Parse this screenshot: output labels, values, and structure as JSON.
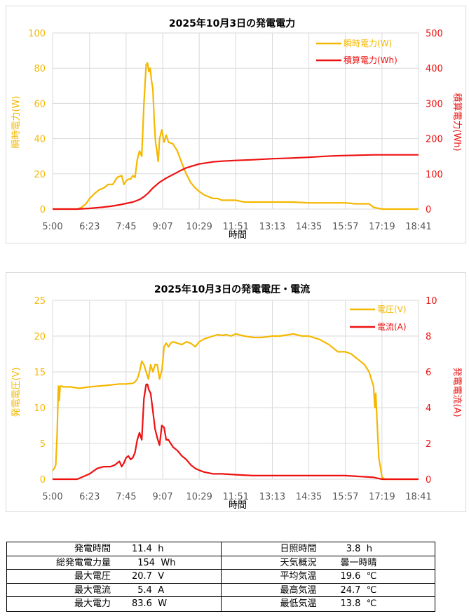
{
  "colors": {
    "instant": "#f5b800",
    "cumulative": "#ee1111",
    "voltage": "#f5b800",
    "current": "#ee1111",
    "grid": "#d9d9d9",
    "text": "#000000",
    "tick": "#595959"
  },
  "chart_data": [
    {
      "type": "line",
      "title": "2025年10月3日の発電電力",
      "xlabel": "時間",
      "ylabel": "瞬時電力(W)",
      "y2label": "積算電力(Wh)",
      "x_ticks": [
        "5:00",
        "6:23",
        "7:45",
        "9:07",
        "10:29",
        "11:51",
        "13:13",
        "14:35",
        "15:57",
        "17:19",
        "18:41"
      ],
      "ylim": [
        0,
        100
      ],
      "y_ticks": [
        "0",
        "20",
        "40",
        "60",
        "80",
        "100"
      ],
      "y2lim": [
        0,
        500
      ],
      "y2_ticks": [
        "0",
        "100",
        "200",
        "300",
        "400",
        "500"
      ],
      "grid": true,
      "legend_position": "top-right",
      "series": [
        {
          "name": "瞬時電力(W)",
          "axis": "left",
          "x": [
            "5:00",
            "5:55",
            "6:05",
            "6:15",
            "6:23",
            "6:35",
            "6:45",
            "6:55",
            "7:05",
            "7:15",
            "7:25",
            "7:35",
            "7:40",
            "7:45",
            "7:50",
            "7:55",
            "8:00",
            "8:05",
            "8:10",
            "8:15",
            "8:20",
            "8:25",
            "8:30",
            "8:33",
            "8:36",
            "8:39",
            "8:42",
            "8:45",
            "8:48",
            "8:51",
            "8:54",
            "8:57",
            "9:00",
            "9:05",
            "9:10",
            "9:15",
            "9:20",
            "9:30",
            "9:40",
            "9:50",
            "10:00",
            "10:10",
            "10:20",
            "10:29",
            "10:40",
            "10:50",
            "11:00",
            "11:10",
            "11:20",
            "11:30",
            "11:40",
            "11:51",
            "12:10",
            "12:30",
            "13:00",
            "13:13",
            "13:40",
            "14:00",
            "14:35",
            "15:00",
            "15:30",
            "15:57",
            "16:20",
            "16:40",
            "16:50",
            "17:00",
            "17:19",
            "18:00",
            "18:41"
          ],
          "y": [
            0,
            0,
            1,
            3,
            6,
            9,
            11,
            12,
            14,
            14,
            18,
            19,
            14,
            16,
            17,
            17,
            19,
            18,
            28,
            33,
            30,
            60,
            82,
            83,
            78,
            80,
            73,
            68,
            50,
            38,
            33,
            27,
            40,
            45,
            38,
            42,
            38,
            37,
            33,
            26,
            20,
            15,
            12,
            10,
            8,
            7,
            6,
            6,
            5,
            5,
            5,
            5,
            4,
            4,
            4,
            4,
            4,
            4,
            3.5,
            3.5,
            3.5,
            3.5,
            3,
            3,
            3,
            1,
            0,
            0,
            0
          ]
        },
        {
          "name": "積算電力(Wh)",
          "axis": "right",
          "x": [
            "5:00",
            "5:55",
            "6:23",
            "6:50",
            "7:10",
            "7:30",
            "7:45",
            "8:00",
            "8:15",
            "8:25",
            "8:35",
            "8:45",
            "9:00",
            "9:15",
            "9:30",
            "9:45",
            "10:00",
            "10:15",
            "10:29",
            "10:45",
            "11:00",
            "11:20",
            "11:51",
            "12:30",
            "13:13",
            "13:40",
            "14:00",
            "14:35",
            "15:00",
            "15:30",
            "15:57",
            "16:30",
            "17:00",
            "17:19",
            "18:00",
            "18:41"
          ],
          "y": [
            0,
            0,
            2,
            5,
            8,
            12,
            16,
            20,
            27,
            35,
            46,
            60,
            76,
            88,
            98,
            108,
            117,
            123,
            128,
            131,
            134,
            136,
            138,
            140,
            143,
            144,
            145,
            147,
            149,
            151,
            152,
            153,
            154,
            154,
            154,
            154
          ]
        }
      ]
    },
    {
      "type": "line",
      "title": "2025年10月3日の発電電圧・電流",
      "xlabel": "時間",
      "ylabel": "発電電圧(V)",
      "y2label": "発電電流(A)",
      "x_ticks": [
        "5:00",
        "6:23",
        "7:45",
        "9:07",
        "10:29",
        "11:51",
        "13:13",
        "14:35",
        "15:57",
        "17:19",
        "18:41"
      ],
      "ylim": [
        0,
        25
      ],
      "y_ticks": [
        "0",
        "5",
        "10",
        "15",
        "20",
        "25"
      ],
      "y2lim": [
        0,
        10
      ],
      "y2_ticks": [
        "0",
        "2",
        "4",
        "6",
        "8",
        "10"
      ],
      "grid": true,
      "legend_position": "top-right",
      "series": [
        {
          "name": "電圧(V)",
          "axis": "left",
          "x": [
            "5:00",
            "5:04",
            "5:07",
            "5:10",
            "5:13",
            "5:15",
            "5:17",
            "5:19",
            "5:21",
            "5:24",
            "5:40",
            "6:00",
            "6:23",
            "7:00",
            "7:30",
            "7:45",
            "8:00",
            "8:05",
            "8:10",
            "8:15",
            "8:20",
            "8:25",
            "8:30",
            "8:35",
            "8:40",
            "8:45",
            "8:50",
            "8:55",
            "9:00",
            "9:05",
            "9:07",
            "9:10",
            "9:15",
            "9:20",
            "9:25",
            "9:30",
            "9:40",
            "9:50",
            "10:00",
            "10:10",
            "10:20",
            "10:29",
            "10:40",
            "10:50",
            "11:00",
            "11:10",
            "11:20",
            "11:30",
            "11:40",
            "11:51",
            "12:10",
            "12:30",
            "12:50",
            "13:13",
            "13:30",
            "13:50",
            "14:00",
            "14:20",
            "14:35",
            "15:00",
            "15:20",
            "15:40",
            "15:57",
            "16:10",
            "16:20",
            "16:30",
            "16:40",
            "16:50",
            "16:55",
            "17:00",
            "17:03",
            "17:05",
            "17:08",
            "17:12",
            "17:19",
            "17:25",
            "17:35",
            "18:00",
            "18:41"
          ],
          "y": [
            1.2,
            1.5,
            2,
            6,
            13,
            11,
            13,
            13,
            13,
            12.9,
            12.9,
            12.7,
            12.9,
            13.1,
            13.3,
            13.3,
            13.4,
            13.6,
            14,
            15,
            16.5,
            16,
            15,
            14,
            16,
            15,
            16,
            16,
            14,
            15.2,
            16.2,
            18.5,
            19,
            18.5,
            19,
            19.2,
            19,
            18.8,
            19.2,
            19,
            18.5,
            19.2,
            19.6,
            19.8,
            20,
            20.2,
            20.1,
            20.2,
            20,
            20.3,
            20,
            19.8,
            19.8,
            20,
            20,
            20.2,
            20.3,
            20,
            20,
            19.5,
            18.8,
            17.8,
            17.8,
            17.5,
            17,
            16.5,
            16,
            15,
            14,
            13,
            10,
            12,
            8,
            3,
            0.3,
            0,
            0,
            0,
            0
          ]
        },
        {
          "name": "電流(A)",
          "axis": "right",
          "x": [
            "5:00",
            "5:55",
            "6:05",
            "6:23",
            "6:40",
            "6:55",
            "7:10",
            "7:20",
            "7:30",
            "7:35",
            "7:40",
            "7:45",
            "7:50",
            "7:55",
            "8:00",
            "8:05",
            "8:10",
            "8:15",
            "8:20",
            "8:25",
            "8:30",
            "8:33",
            "8:36",
            "8:40",
            "8:45",
            "8:50",
            "8:55",
            "9:00",
            "9:05",
            "9:10",
            "9:15",
            "9:20",
            "9:30",
            "9:40",
            "9:50",
            "10:00",
            "10:10",
            "10:20",
            "10:29",
            "10:40",
            "10:50",
            "11:00",
            "11:20",
            "11:51",
            "12:30",
            "13:13",
            "14:00",
            "14:35",
            "15:00",
            "15:30",
            "15:57",
            "16:30",
            "17:00",
            "17:19",
            "18:00",
            "18:41"
          ],
          "y": [
            0,
            0,
            0.1,
            0.3,
            0.6,
            0.7,
            0.7,
            0.8,
            1.0,
            0.7,
            0.9,
            1.2,
            1.3,
            1.1,
            1.2,
            1.5,
            2.2,
            2.6,
            2.2,
            4.5,
            5.3,
            5.3,
            5.0,
            4.8,
            3.8,
            2.8,
            2.3,
            1.9,
            3.0,
            2.9,
            2.2,
            2.2,
            1.8,
            1.6,
            1.3,
            1.1,
            0.8,
            0.6,
            0.5,
            0.4,
            0.35,
            0.3,
            0.3,
            0.25,
            0.2,
            0.2,
            0.2,
            0.2,
            0.2,
            0.2,
            0.2,
            0.15,
            0.1,
            0,
            0,
            0
          ]
        }
      ]
    }
  ],
  "summary": {
    "left": [
      {
        "label": "発電時間",
        "value": "11.4  h"
      },
      {
        "label": "総発電電力量",
        "value": "  154  Wh"
      },
      {
        "label": "最大電圧",
        "value": "20.7  V"
      },
      {
        "label": "最大電流",
        "value": "  5.4  A"
      },
      {
        "label": "最大電力",
        "value": "83.6  W"
      }
    ],
    "right": [
      {
        "label": "日照時間",
        "value": "  3.8  h"
      },
      {
        "label": "天気概況",
        "value": "曇一時晴"
      },
      {
        "label": "平均気温",
        "value": "19.6  ℃"
      },
      {
        "label": "最高気温",
        "value": "24.7  ℃"
      },
      {
        "label": "最低気温",
        "value": "13.8  ℃"
      }
    ]
  }
}
